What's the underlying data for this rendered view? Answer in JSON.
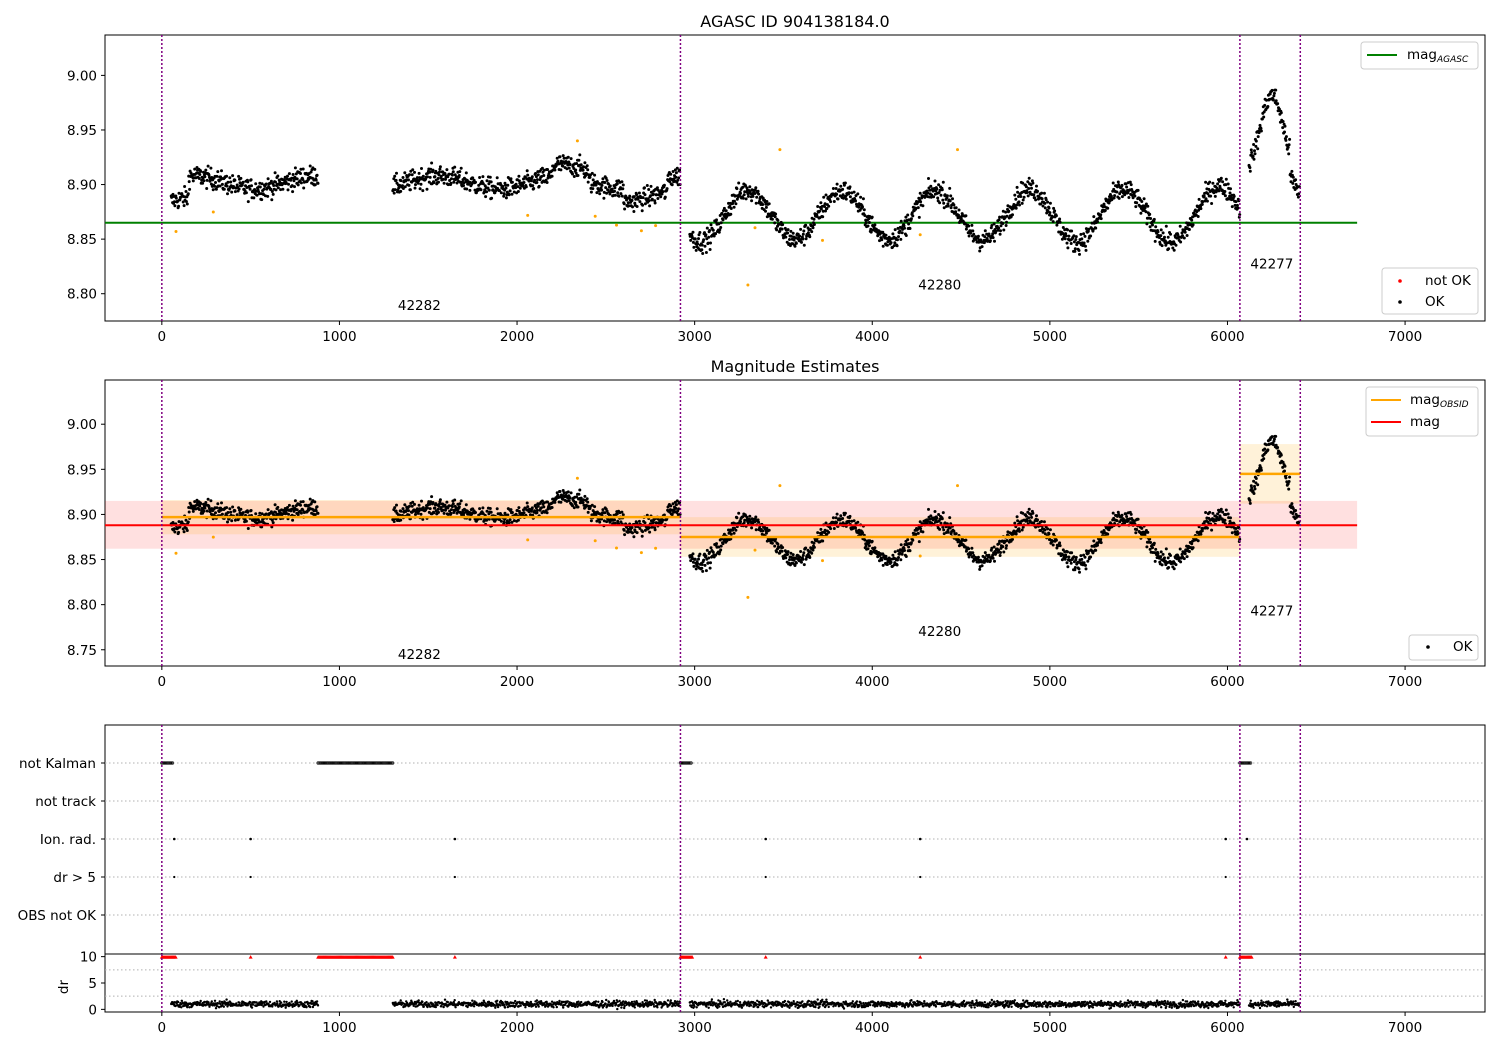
{
  "figure_title": "AGASC ID 904138184.0",
  "colors": {
    "ok": "#000000",
    "not_ok": "#ff0000",
    "excluded": "#ffa500",
    "agasc_line": "#008000",
    "obsid_line": "#ffa500",
    "mag_line": "#ff0000",
    "obs_boundary": "#800080",
    "flag_grid": "#b0b0b0"
  },
  "obs_boundaries": [
    0,
    2920,
    6070,
    6410
  ],
  "observations": [
    {
      "obsid": "42282",
      "label_x": 1450,
      "label_y_top": 8.785,
      "label_y_mid": 8.74
    },
    {
      "obsid": "42280",
      "label_x": 4380,
      "label_y_top": 8.804,
      "label_y_mid": 8.765
    },
    {
      "obsid": "42277",
      "label_x": 6250,
      "label_y_top": 8.823,
      "label_y_mid": 8.788
    }
  ],
  "chart_data": [
    {
      "type": "scatter",
      "name": "agasc-panel",
      "title": "AGASC ID 904138184.0",
      "xlim": [
        -320,
        7450
      ],
      "ylim": [
        8.775,
        9.037
      ],
      "xticks": [
        0,
        1000,
        2000,
        3000,
        4000,
        5000,
        6000,
        7000
      ],
      "yticks": [
        8.8,
        8.85,
        8.9,
        8.95,
        9.0
      ],
      "ytick_labels": [
        "8.80",
        "8.85",
        "8.90",
        "8.95",
        "9.00"
      ],
      "mag_agasc": 8.865,
      "mag_agasc_xrange": [
        -320,
        6730
      ],
      "legend_top": [
        "mag_AGASC"
      ],
      "legend_top_main": "mag",
      "legend_top_sub": "AGASC",
      "legend_bottom": [
        "not OK",
        "OK"
      ]
    },
    {
      "type": "scatter",
      "name": "estimates-panel",
      "title": "Magnitude Estimates",
      "xlim": [
        -320,
        7450
      ],
      "ylim": [
        8.732,
        9.049
      ],
      "xticks": [
        0,
        1000,
        2000,
        3000,
        4000,
        5000,
        6000,
        7000
      ],
      "yticks": [
        8.75,
        8.8,
        8.85,
        8.9,
        8.95,
        9.0
      ],
      "ytick_labels": [
        "8.75",
        "8.80",
        "8.85",
        "8.90",
        "8.95",
        "9.00"
      ],
      "mag": 8.888,
      "mag_band": [
        8.862,
        8.915
      ],
      "mag_xrange": [
        -320,
        6730
      ],
      "mag_obsid": [
        {
          "x0": 0,
          "x1": 2920,
          "mag": 8.897,
          "band": [
            8.878,
            8.916
          ]
        },
        {
          "x0": 2920,
          "x1": 6070,
          "mag": 8.875,
          "band": [
            8.853,
            8.897
          ]
        },
        {
          "x0": 6070,
          "x1": 6410,
          "mag": 8.945,
          "band": [
            8.912,
            8.978
          ]
        }
      ],
      "legend_top_main_1": "mag",
      "legend_top_sub_1": "OBSID",
      "legend_top_2": "mag",
      "legend_bottom": [
        "OK"
      ]
    },
    {
      "type": "scatter",
      "name": "flags-panel",
      "xlim": [
        -320,
        7450
      ],
      "flag_labels": [
        "not Kalman",
        "not track",
        "Ion. rad.",
        "dr > 5",
        "OBS not OK"
      ],
      "not_kalman_ranges": [
        [
          0,
          60
        ],
        [
          880,
          1300
        ],
        [
          2920,
          2980
        ],
        [
          6070,
          6130
        ]
      ],
      "ion_rad_times": [
        70,
        500,
        1650,
        3400,
        4270,
        5990,
        6110
      ],
      "dr5_times": [
        70,
        500,
        1650,
        3400,
        4270,
        5990
      ],
      "dr_ylim": [
        -0.5,
        10.5
      ],
      "dr_yticks": [
        0,
        5,
        10
      ],
      "dr_ytick_labels": [
        "0",
        "5",
        "10"
      ],
      "dr_label": "dr",
      "dr_clipped_ranges": [
        [
          0,
          80
        ],
        [
          880,
          1300
        ],
        [
          2920,
          2990
        ],
        [
          6070,
          6140
        ]
      ],
      "dr_clipped_times": [
        500,
        1650,
        3400,
        4270,
        5990
      ],
      "xticks": [
        0,
        1000,
        2000,
        3000,
        4000,
        5000,
        6000,
        7000
      ]
    }
  ]
}
